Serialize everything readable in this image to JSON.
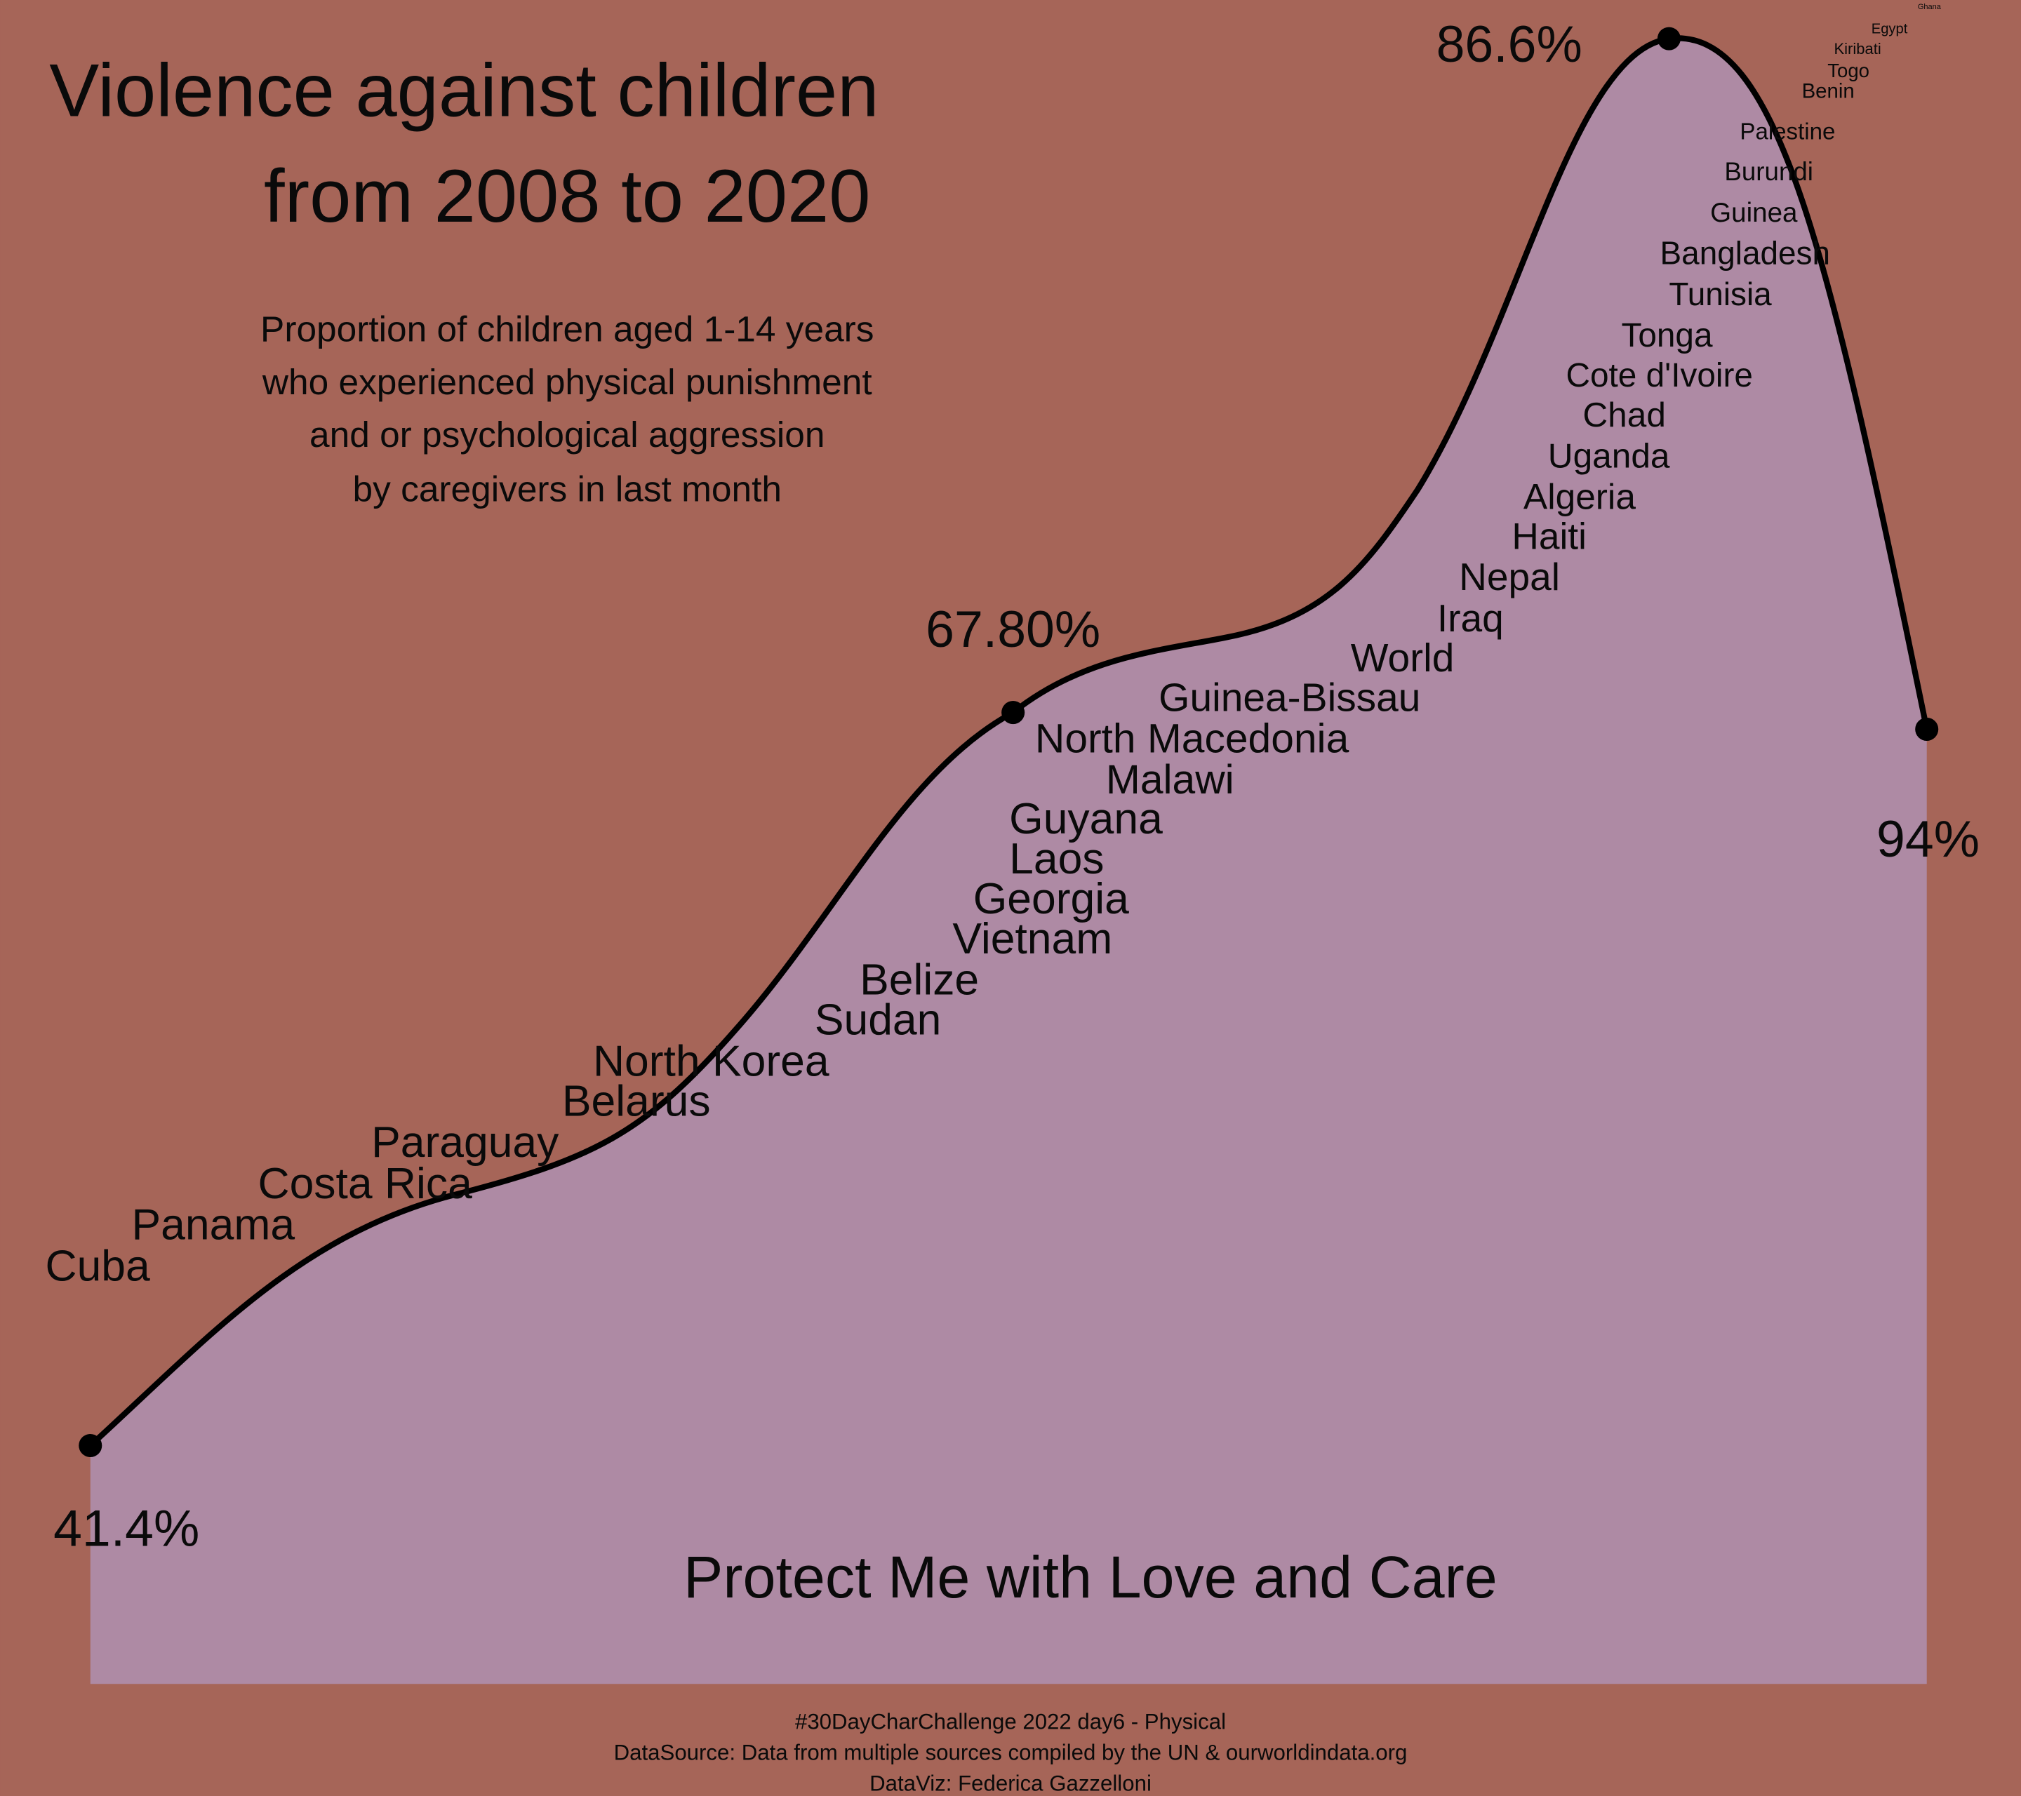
{
  "title": [
    "Violence against children",
    "from 2008 to 2020"
  ],
  "subtitle": [
    "Proportion of children aged 1-14 years",
    "who experienced physical punishment",
    "and or psychological aggression",
    "by caregivers in last month"
  ],
  "point_labels": [
    "41.4%",
    "67.80%",
    "86.6%",
    "94%"
  ],
  "countries": [
    "Cuba",
    "Panama",
    "Costa Rica",
    "Paraguay",
    "Belarus",
    "North Korea",
    "Sudan",
    "Belize",
    "Vietnam",
    "Georgia",
    "Laos",
    "Guyana",
    "Malawi",
    "North Macedonia",
    "Guinea-Bissau",
    "World",
    "Iraq",
    "Nepal",
    "Haiti",
    "Algeria",
    "Uganda",
    "Chad",
    "Cote d'Ivoire",
    "Tonga",
    "Tunisia",
    "Bangladesh",
    "Guinea",
    "Burundi",
    "Palestine",
    "Benin",
    "Togo",
    "Kiribati",
    "Egypt",
    "Ghana"
  ],
  "tagline": "Protect Me with Love and Care",
  "caption": [
    "#30DayCharChallenge 2022 day6 - Physical",
    "DataSource: Data from multiple sources compiled by the UN & ourworldindata.org",
    "DataViz: Federica Gazzelloni"
  ]
}
